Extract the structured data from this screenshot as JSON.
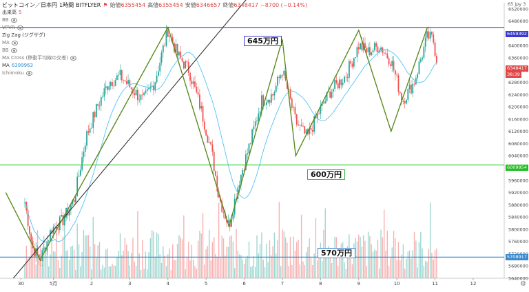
{
  "header": {
    "symbol": "ビットコイン／日本円",
    "interval": "1時間",
    "exchange": "BITFLYER",
    "ohlc": [
      {
        "label": "始値",
        "value": "6355454"
      },
      {
        "label": "高値",
        "value": "6355454"
      },
      {
        "label": "安値",
        "value": "6346657"
      },
      {
        "label": "終値",
        "value": "6348417"
      }
    ],
    "change": "−8700 (−0.14%)",
    "indicators": [
      {
        "name": "出来高",
        "value": "5"
      },
      {
        "name": "BB",
        "value": ""
      },
      {
        "name": "VPVR",
        "value": ""
      },
      {
        "name": "Zig Zag (ジグザグ)",
        "value": ""
      },
      {
        "name": "MA",
        "value": ""
      },
      {
        "name": "BB",
        "value": ""
      },
      {
        "name": "MA Cross (移動平均線の交差)",
        "value": ""
      },
      {
        "name": "MA",
        "value": "6399963"
      },
      {
        "name": "Ichimoku",
        "value": ""
      }
    ]
  },
  "corner_label": "65 jpy 3",
  "annotations": {
    "level_645": "645万円",
    "level_600": "600万円",
    "level_570": "570万円"
  },
  "price_tags": {
    "top": "6459392",
    "current": "6348417",
    "current_sub": "38:39",
    "mid": "6009954",
    "bottom": "5708917"
  },
  "colors": {
    "up": "#26a69a",
    "down": "#ef5350",
    "ma": "#4fc3f7",
    "zigzag": "#5a8a1e",
    "trendline": "#333333",
    "level_645": "#3a3acf",
    "level_600": "#22cc22",
    "level_570": "#3a8ad0",
    "tag_current": "#e04848"
  },
  "chart_data": {
    "type": "candlestick",
    "title": "ビットコイン／日本円 1時間 BITFLYER",
    "y_axis": {
      "range": [
        5640000,
        6540000
      ],
      "ticks": [
        6520000,
        6480000,
        6440000,
        6400000,
        6360000,
        6320000,
        6280000,
        6240000,
        6200000,
        6160000,
        6120000,
        6080000,
        6040000,
        6000000,
        5960000,
        5920000,
        5880000,
        5840000,
        5800000,
        5760000,
        5720000,
        5680000,
        5640000
      ]
    },
    "x_axis": {
      "ticks": [
        "30",
        "5月",
        "2",
        "3",
        "4",
        "5",
        "6",
        "7",
        "8",
        "9",
        "10",
        "11",
        "12"
      ],
      "range_days": [
        0,
        12.9
      ]
    },
    "horizontal_lines": [
      {
        "value": 6459392,
        "label": "645万円"
      },
      {
        "value": 6009954,
        "label": "600万円"
      },
      {
        "value": 5708917,
        "label": "570万円"
      }
    ],
    "trendline": [
      [
        -0.3,
        5640000
      ],
      [
        6.0,
        6580000
      ]
    ],
    "zigzag": [
      [
        -0.5,
        5920000
      ],
      [
        0.4,
        5700000
      ],
      [
        3.75,
        6460000
      ],
      [
        5.35,
        5810000
      ],
      [
        6.75,
        6420000
      ],
      [
        7.1,
        6040000
      ],
      [
        8.75,
        6450000
      ],
      [
        9.6,
        6120000
      ],
      [
        10.55,
        6460000
      ]
    ],
    "price_path": [
      [
        0.0,
        5890000
      ],
      [
        0.2,
        5740000
      ],
      [
        0.4,
        5700000
      ],
      [
        0.7,
        5800000
      ],
      [
        1.0,
        5830000
      ],
      [
        1.3,
        5900000
      ],
      [
        1.6,
        6100000
      ],
      [
        1.9,
        6200000
      ],
      [
        2.2,
        6280000
      ],
      [
        2.5,
        6300000
      ],
      [
        2.8,
        6260000
      ],
      [
        3.1,
        6220000
      ],
      [
        3.4,
        6280000
      ],
      [
        3.75,
        6450000
      ],
      [
        4.0,
        6370000
      ],
      [
        4.3,
        6320000
      ],
      [
        4.6,
        6200000
      ],
      [
        4.9,
        6050000
      ],
      [
        5.1,
        5900000
      ],
      [
        5.35,
        5810000
      ],
      [
        5.6,
        5950000
      ],
      [
        5.9,
        6080000
      ],
      [
        6.2,
        6220000
      ],
      [
        6.5,
        6240000
      ],
      [
        6.75,
        6320000
      ],
      [
        7.1,
        6150000
      ],
      [
        7.4,
        6100000
      ],
      [
        7.7,
        6180000
      ],
      [
        8.0,
        6250000
      ],
      [
        8.4,
        6300000
      ],
      [
        8.75,
        6400000
      ],
      [
        9.0,
        6380000
      ],
      [
        9.3,
        6400000
      ],
      [
        9.6,
        6350000
      ],
      [
        9.9,
        6220000
      ],
      [
        10.2,
        6280000
      ],
      [
        10.55,
        6430000
      ],
      [
        10.7,
        6420000
      ],
      [
        10.8,
        6350000
      ]
    ],
    "volume_scale": "relative"
  }
}
